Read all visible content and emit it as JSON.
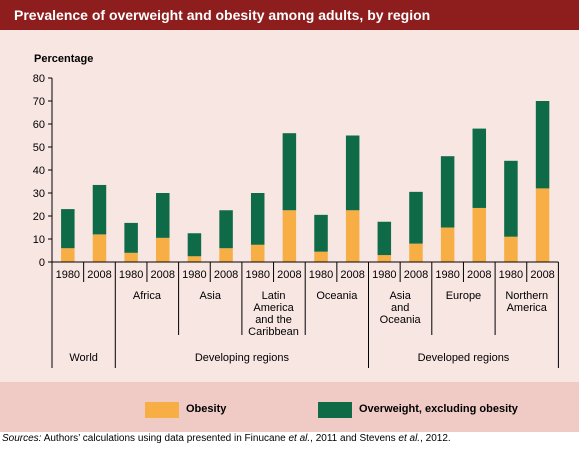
{
  "title": "Prevalence of overweight and obesity among adults, by region",
  "colors": {
    "title_bg": "#8e1d1d",
    "panel_bg": "#f8e6e3",
    "legend_bg": "#f0cbc5",
    "obesity": "#f6ae45",
    "overweight": "#0f6a48"
  },
  "chart_data": {
    "type": "bar",
    "stacked": true,
    "ylabel": "Percentage",
    "ylim": [
      0,
      80
    ],
    "yticks": [
      0,
      10,
      20,
      30,
      40,
      50,
      60,
      70,
      80
    ],
    "regions": [
      {
        "label": [
          "World"
        ],
        "group": "World",
        "years": [
          {
            "year": "1980",
            "obesity": 6,
            "total": 23
          },
          {
            "year": "2008",
            "obesity": 12,
            "total": 33.5
          }
        ]
      },
      {
        "label": [
          "Africa"
        ],
        "group": "Developing regions",
        "years": [
          {
            "year": "1980",
            "obesity": 4,
            "total": 17
          },
          {
            "year": "2008",
            "obesity": 10.5,
            "total": 30
          }
        ]
      },
      {
        "label": [
          "Asia"
        ],
        "group": "Developing regions",
        "years": [
          {
            "year": "1980",
            "obesity": 2.5,
            "total": 12.5
          },
          {
            "year": "2008",
            "obesity": 6,
            "total": 22.5
          }
        ]
      },
      {
        "label": [
          "Latin",
          "America",
          "and the",
          "Caribbean"
        ],
        "group": "Developing regions",
        "years": [
          {
            "year": "1980",
            "obesity": 7.5,
            "total": 30
          },
          {
            "year": "2008",
            "obesity": 22.5,
            "total": 56
          }
        ]
      },
      {
        "label": [
          "Oceania"
        ],
        "group": "Developing regions",
        "years": [
          {
            "year": "1980",
            "obesity": 4.5,
            "total": 20.5
          },
          {
            "year": "2008",
            "obesity": 22.5,
            "total": 55
          }
        ]
      },
      {
        "label": [
          "Asia",
          "and",
          "Oceania"
        ],
        "group": "Developed regions",
        "years": [
          {
            "year": "1980",
            "obesity": 3,
            "total": 17.5
          },
          {
            "year": "2008",
            "obesity": 8,
            "total": 30.5
          }
        ]
      },
      {
        "label": [
          "Europe"
        ],
        "group": "Developed regions",
        "years": [
          {
            "year": "1980",
            "obesity": 15,
            "total": 46
          },
          {
            "year": "2008",
            "obesity": 23.5,
            "total": 58
          }
        ]
      },
      {
        "label": [
          "Northern",
          "America"
        ],
        "group": "Developed regions",
        "years": [
          {
            "year": "1980",
            "obesity": 11,
            "total": 44
          },
          {
            "year": "2008",
            "obesity": 32,
            "total": 70
          }
        ]
      }
    ],
    "groups": [
      "World",
      "Developing regions",
      "Developed regions"
    ],
    "series": [
      {
        "name": "Obesity",
        "key": "obesity"
      },
      {
        "name": "Overweight, excluding obesity",
        "key": "overweight"
      }
    ]
  },
  "legend": {
    "obesity_label": "Obesity",
    "overweight_label": "Overweight, excluding obesity"
  },
  "source": {
    "label": "Sources:",
    "text_parts": [
      " Authors’ calculations using data presented in Finucane ",
      "et al.",
      ", 2011 and Stevens ",
      "et al.",
      ", 2012."
    ]
  }
}
